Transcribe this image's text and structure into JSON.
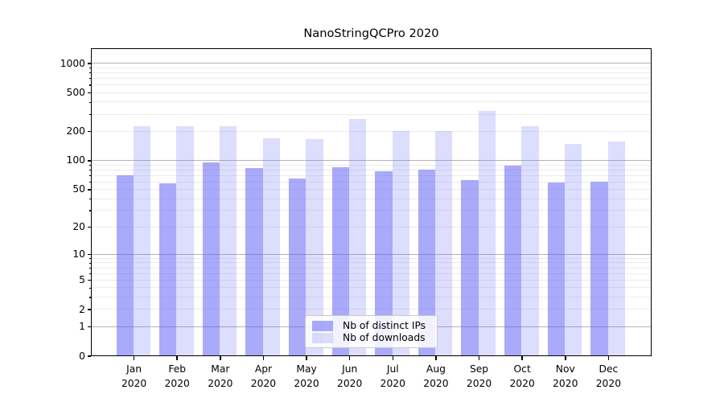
{
  "chart_data": {
    "type": "bar",
    "title": "NanoStringQCPro 2020",
    "categories": [
      {
        "line1": "Jan",
        "line2": "2020"
      },
      {
        "line1": "Feb",
        "line2": "2020"
      },
      {
        "line1": "Mar",
        "line2": "2020"
      },
      {
        "line1": "Apr",
        "line2": "2020"
      },
      {
        "line1": "May",
        "line2": "2020"
      },
      {
        "line1": "Jun",
        "line2": "2020"
      },
      {
        "line1": "Jul",
        "line2": "2020"
      },
      {
        "line1": "Aug",
        "line2": "2020"
      },
      {
        "line1": "Sep",
        "line2": "2020"
      },
      {
        "line1": "Oct",
        "line2": "2020"
      },
      {
        "line1": "Nov",
        "line2": "2020"
      },
      {
        "line1": "Dec",
        "line2": "2020"
      }
    ],
    "series": [
      {
        "name": "Nb of distinct IPs",
        "color": "rgba(85,85,245,0.5)",
        "values": [
          70,
          57,
          94,
          83,
          64,
          84,
          77,
          79,
          62,
          87,
          59,
          60
        ]
      },
      {
        "name": "Nb of downloads",
        "color": "rgba(85,85,245,0.2)",
        "values": [
          222,
          223,
          225,
          169,
          164,
          263,
          198,
          201,
          324,
          224,
          147,
          156
        ]
      }
    ],
    "y_axis": {
      "scale": "log1p",
      "tick_labels": [
        1000,
        500,
        200,
        100,
        50,
        20,
        10,
        5,
        2,
        1,
        0
      ],
      "major_grid_values": [
        1,
        10,
        100,
        1000
      ],
      "ylim": [
        0,
        1360
      ],
      "grid": true
    },
    "x_axis": {
      "label": "",
      "tick_year": "2020"
    },
    "legend": {
      "position": "lower-center"
    },
    "colors": {
      "major_grid": "#b4b4b4",
      "minor_grid": "#ececec",
      "axis": "#000000",
      "background": "#ffffff"
    }
  }
}
